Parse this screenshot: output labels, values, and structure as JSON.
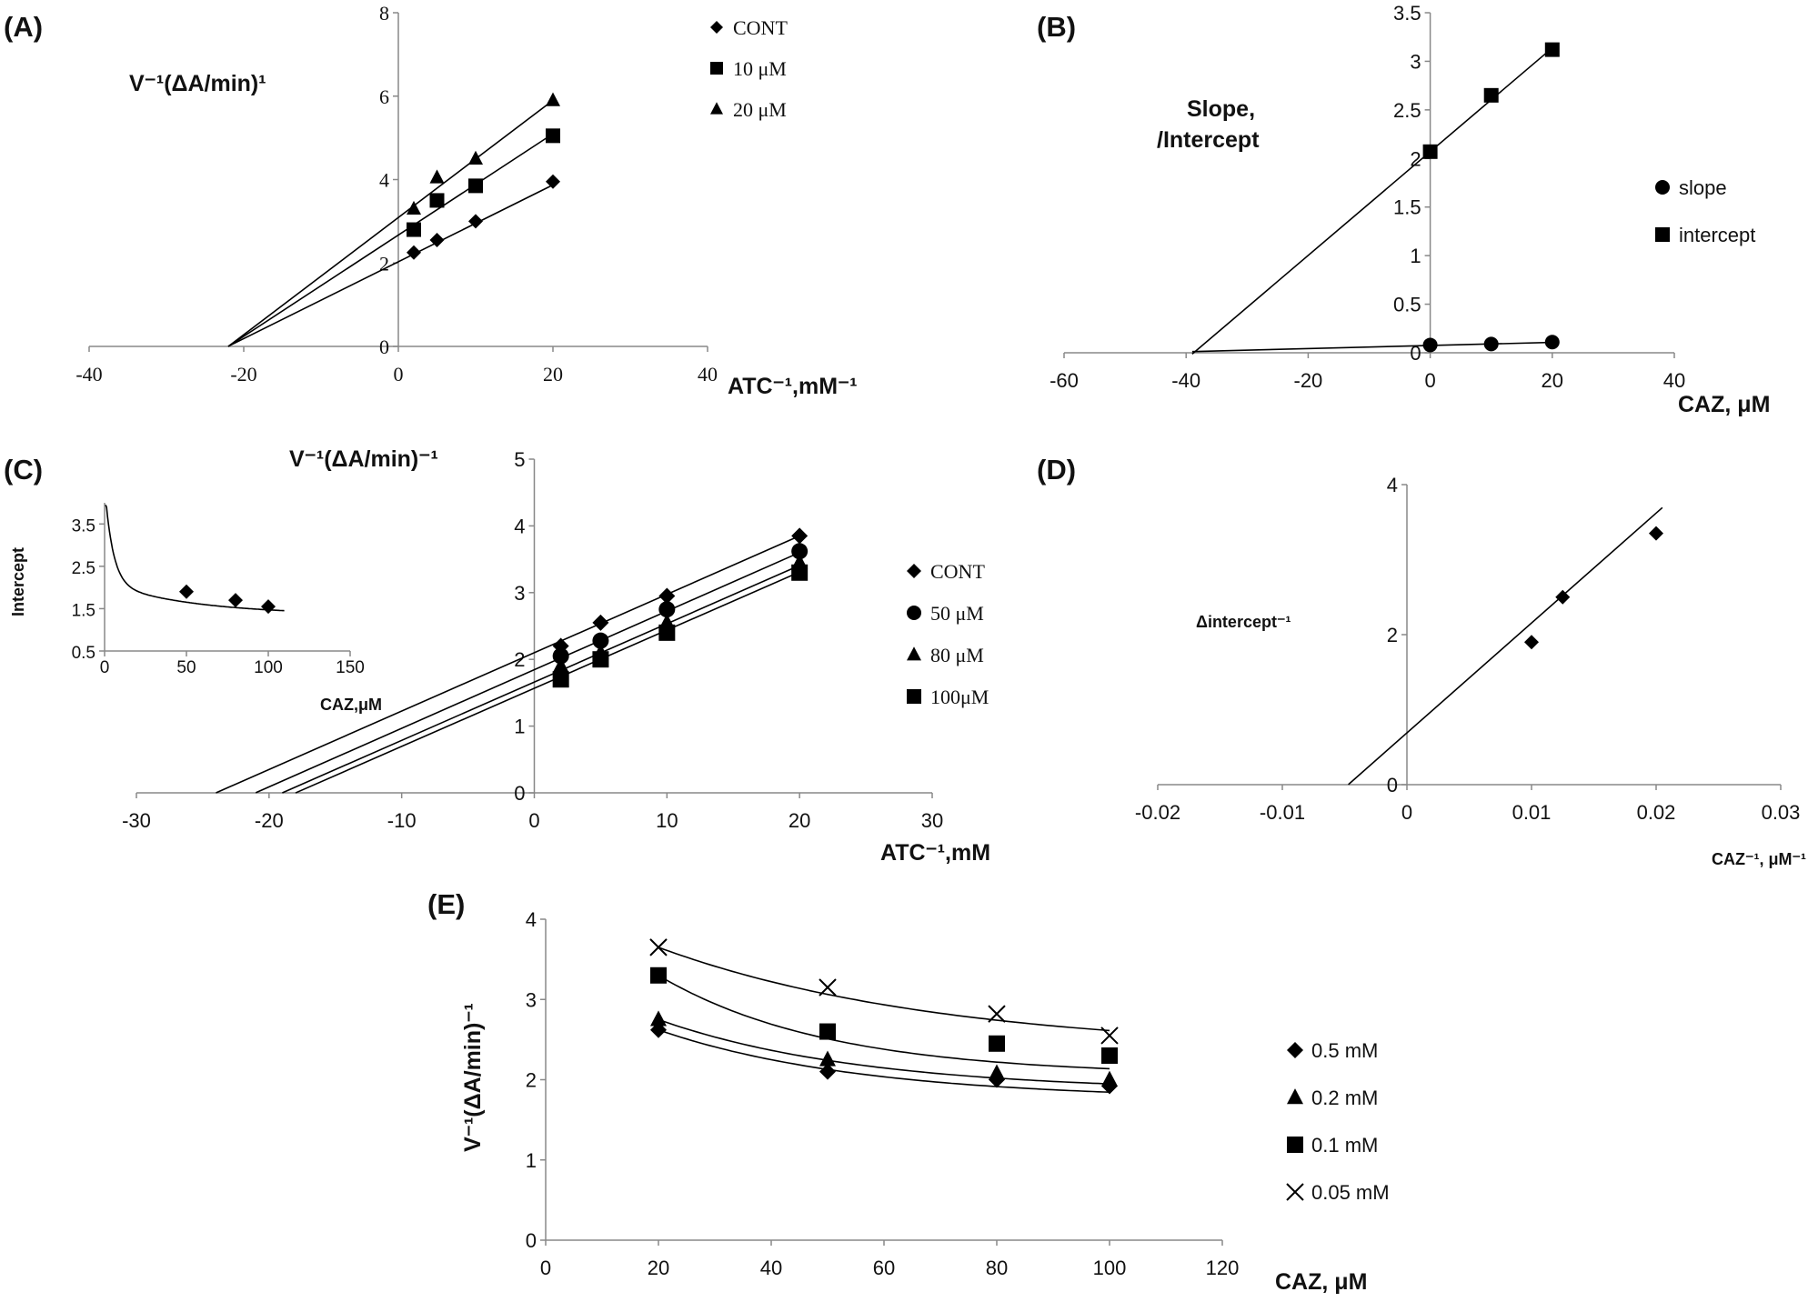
{
  "chart_data": [
    {
      "id": "A",
      "type": "scatter",
      "panel_label": "(A)",
      "ylabel": "V⁻¹(ΔA/min)¹",
      "xlabel": "ATC⁻¹,mM⁻¹",
      "xlim": [
        -40,
        40
      ],
      "ylim": [
        0,
        8
      ],
      "x_ticks": [
        -40,
        -20,
        0,
        20,
        40
      ],
      "y_ticks": [
        0,
        2,
        4,
        6,
        8
      ],
      "legend_position": "top-right",
      "series": [
        {
          "name": "CONT",
          "marker": "diamond",
          "x": [
            2,
            5,
            10,
            20
          ],
          "y": [
            2.25,
            2.55,
            3.0,
            3.95
          ],
          "fit": {
            "x0": -22,
            "x1": 20,
            "slope": 0.0921,
            "intercept": 2.03
          }
        },
        {
          "name": "10 μM",
          "marker": "square",
          "x": [
            2,
            5,
            10,
            20
          ],
          "y": [
            2.8,
            3.5,
            3.85,
            5.05
          ],
          "fit": {
            "x0": -22,
            "x1": 20,
            "slope": 0.1214,
            "intercept": 2.67
          }
        },
        {
          "name": "20 μM",
          "marker": "triangle",
          "x": [
            2,
            5,
            10,
            20
          ],
          "y": [
            3.3,
            4.05,
            4.5,
            5.9
          ],
          "fit": {
            "x0": -22,
            "x1": 20,
            "slope": 0.1405,
            "intercept": 3.09
          }
        }
      ]
    },
    {
      "id": "B",
      "type": "scatter",
      "panel_label": "(B)",
      "ylabel_line1": "Slope,",
      "ylabel_line2": "/Intercept",
      "xlabel": "CAZ,  μM",
      "xlim": [
        -60,
        40
      ],
      "ylim": [
        0,
        3.5
      ],
      "x_ticks": [
        -60,
        -40,
        -20,
        0,
        20,
        40
      ],
      "y_ticks": [
        0,
        0.5,
        1,
        1.5,
        2,
        2.5,
        3,
        3.5
      ],
      "legend_position": "right",
      "series": [
        {
          "name": "slope",
          "marker": "circle",
          "x": [
            0,
            10,
            20
          ],
          "y": [
            0.08,
            0.09,
            0.11
          ],
          "fit": {
            "x0": -39,
            "x1": 20,
            "slope": 0.0016,
            "intercept": 0.075
          }
        },
        {
          "name": "intercept",
          "marker": "square",
          "x": [
            0,
            10,
            20
          ],
          "y": [
            2.07,
            2.65,
            3.12
          ],
          "fit": {
            "x0": -39,
            "x1": 20,
            "slope": 0.0534,
            "intercept": 2.07
          }
        }
      ]
    },
    {
      "id": "C",
      "type": "scatter",
      "panel_label": "(C)",
      "ylabel": "V⁻¹(ΔA/min)⁻¹",
      "xlabel": "ATC⁻¹,mM",
      "xlim": [
        -30,
        30
      ],
      "ylim": [
        0,
        5
      ],
      "x_ticks": [
        -30,
        -20,
        -10,
        0,
        10,
        20,
        30
      ],
      "y_ticks": [
        0,
        1,
        2,
        3,
        4,
        5
      ],
      "legend_position": "right",
      "series": [
        {
          "name": "CONT",
          "marker": "diamond",
          "x": [
            2,
            5,
            10,
            20
          ],
          "y": [
            2.2,
            2.55,
            2.95,
            3.85
          ],
          "fit": {
            "x0": -24,
            "x1": 20,
            "slope": 0.0875,
            "intercept": 2.1
          }
        },
        {
          "name": "50 μM",
          "marker": "circle",
          "x": [
            2,
            5,
            10,
            20
          ],
          "y": [
            2.05,
            2.28,
            2.75,
            3.62
          ],
          "fit": {
            "x0": -21,
            "x1": 20,
            "slope": 0.0878,
            "intercept": 1.845
          }
        },
        {
          "name": "80 μM",
          "marker": "triangle",
          "x": [
            2,
            5,
            10,
            20
          ],
          "y": [
            1.9,
            2.1,
            2.55,
            3.45
          ],
          "fit": {
            "x0": -19,
            "x1": 20,
            "slope": 0.0874,
            "intercept": 1.66
          }
        },
        {
          "name": "100μM",
          "marker": "square",
          "x": [
            2,
            5,
            10,
            20
          ],
          "y": [
            1.7,
            2.0,
            2.4,
            3.3
          ],
          "fit": {
            "x0": -18,
            "x1": 20,
            "slope": 0.0871,
            "intercept": 1.567
          }
        }
      ]
    },
    {
      "id": "C-inset",
      "type": "scatter",
      "ylabel": "Intercept",
      "xlabel": "CAZ,μM",
      "xlim": [
        0,
        150
      ],
      "ylim": [
        0.5,
        4
      ],
      "x_ticks": [
        0,
        50,
        100,
        150
      ],
      "y_ticks": [
        0.5,
        1.5,
        2.5,
        3.5
      ],
      "y_tick_labels": [
        "0.5",
        "1.5",
        "2.5",
        "3.5"
      ],
      "series": [
        {
          "name": "intercept",
          "marker": "diamond",
          "x": [
            50,
            80,
            100
          ],
          "y": [
            1.9,
            1.7,
            1.55
          ]
        }
      ]
    },
    {
      "id": "D",
      "type": "scatter",
      "panel_label": "(D)",
      "ylabel": "Δintercept⁻¹",
      "xlabel": "CAZ⁻¹, μM⁻¹",
      "xlim": [
        -0.02,
        0.03
      ],
      "ylim": [
        0,
        4
      ],
      "x_ticks": [
        -0.02,
        -0.01,
        0,
        0.01,
        0.02,
        0.03
      ],
      "x_tick_labels": [
        "-0.02",
        "-0.01",
        "0",
        "0.01",
        "0.02",
        "0.03"
      ],
      "y_ticks": [
        0,
        2,
        4
      ],
      "series": [
        {
          "name": "Δintercept",
          "marker": "diamond",
          "x": [
            0.01,
            0.0125,
            0.02
          ],
          "y": [
            1.9,
            2.5,
            3.35
          ],
          "fit": {
            "x0": -0.0047,
            "x1": 0.0205,
            "slope": 146.5,
            "intercept": 0.69
          }
        }
      ]
    },
    {
      "id": "E",
      "type": "scatter",
      "panel_label": "(E)",
      "ylabel": "V⁻¹(ΔA/min)⁻¹",
      "xlabel": "CAZ,  μM",
      "xlim": [
        0,
        120
      ],
      "ylim": [
        0,
        4
      ],
      "x_ticks": [
        0,
        20,
        40,
        60,
        80,
        100,
        120
      ],
      "y_ticks": [
        0,
        1,
        2,
        3,
        4
      ],
      "legend_position": "right",
      "series": [
        {
          "name": "0.5 mM",
          "marker": "diamond",
          "x": [
            20,
            50,
            80,
            100
          ],
          "y": [
            2.62,
            2.1,
            2.0,
            1.92
          ]
        },
        {
          "name": "0.2 mM",
          "marker": "triangle",
          "x": [
            20,
            50,
            80,
            100
          ],
          "y": [
            2.75,
            2.25,
            2.08,
            2.0
          ]
        },
        {
          "name": "0.1 mM",
          "marker": "square",
          "x": [
            20,
            50,
            80,
            100
          ],
          "y": [
            3.3,
            2.6,
            2.45,
            2.3
          ]
        },
        {
          "name": "0.05 mM",
          "marker": "cross",
          "x": [
            20,
            50,
            80,
            100
          ],
          "y": [
            3.65,
            3.15,
            2.82,
            2.55
          ]
        }
      ]
    }
  ]
}
